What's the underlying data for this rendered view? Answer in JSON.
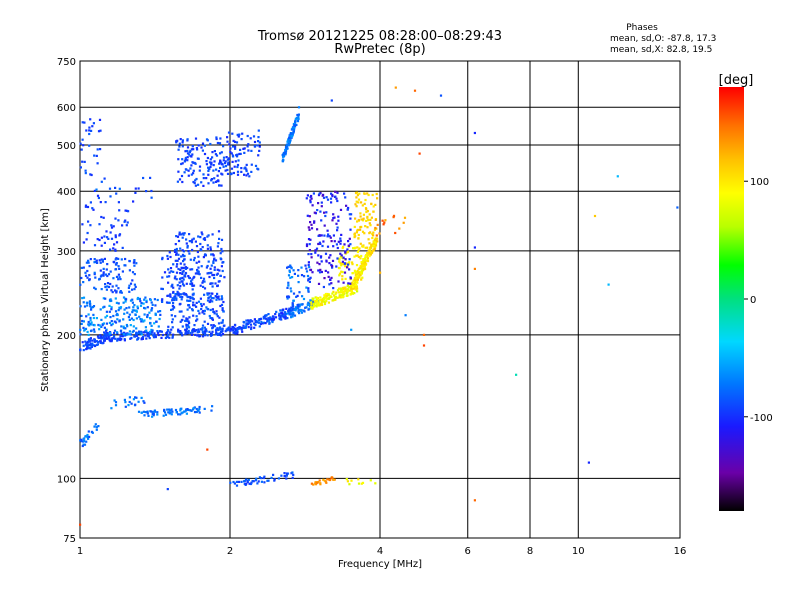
{
  "chart_data": {
    "type": "scatter",
    "title": "Tromsø 20121225 08:28:00–08:29:43",
    "subtitle": "RwPretec (8p)",
    "xlabel": "Frequency [MHz]",
    "ylabel": "Stationary phase Virtual Height [km]",
    "x_scale": "log",
    "y_scale": "log",
    "xlim": [
      1,
      16
    ],
    "ylim": [
      75,
      750
    ],
    "x_ticks": [
      1,
      2,
      4,
      6,
      8,
      10,
      16
    ],
    "y_ticks": [
      75,
      100,
      200,
      300,
      400,
      500,
      600,
      750
    ],
    "grid": true,
    "stats": {
      "heading": "Phases",
      "line_o": "mean, sd,O: -87.8, 17.3",
      "line_x": "mean, sd,X:  82.8, 19.5"
    },
    "colorbar": {
      "label": "[deg]",
      "range": [
        -180,
        180
      ],
      "ticks": [
        100,
        0,
        -100
      ],
      "colors": [
        "#000000",
        "#6a00a8",
        "#1a1aff",
        "#0077ff",
        "#00d8ff",
        "#00e080",
        "#00ff00",
        "#b8ff00",
        "#ffff00",
        "#ffc000",
        "#ff7000",
        "#ff0000"
      ]
    },
    "series": [
      {
        "f": [
          1.0,
          1.18
        ],
        "h": [
          188,
          198
        ],
        "phase": -100
      },
      {
        "f": [
          1.18,
          1.4
        ],
        "h": [
          198,
          212
        ],
        "phase": -95
      },
      {
        "f": [
          1.4,
          2.0
        ],
        "h": [
          200,
          205
        ],
        "phase": -100
      },
      {
        "f": [
          2.0,
          2.6
        ],
        "h": [
          205,
          222
        ],
        "phase": -105
      },
      {
        "f": [
          2.6,
          3.0
        ],
        "h": [
          222,
          235
        ],
        "phase": -100
      },
      {
        "f": [
          2.9,
          3.5
        ],
        "h": [
          230,
          250
        ],
        "phase": 80
      },
      {
        "f": [
          3.5,
          3.8
        ],
        "h": [
          250,
          300
        ],
        "phase": 95
      },
      {
        "f": [
          3.8,
          4.0
        ],
        "h": [
          290,
          380
        ],
        "phase": 105
      },
      {
        "f": [
          2.5,
          2.75
        ],
        "h": [
          480,
          580
        ],
        "phase": -85
      },
      {
        "f": [
          1.6,
          2.0
        ],
        "h": [
          420,
          540
        ],
        "phase": -105
      }
    ]
  }
}
